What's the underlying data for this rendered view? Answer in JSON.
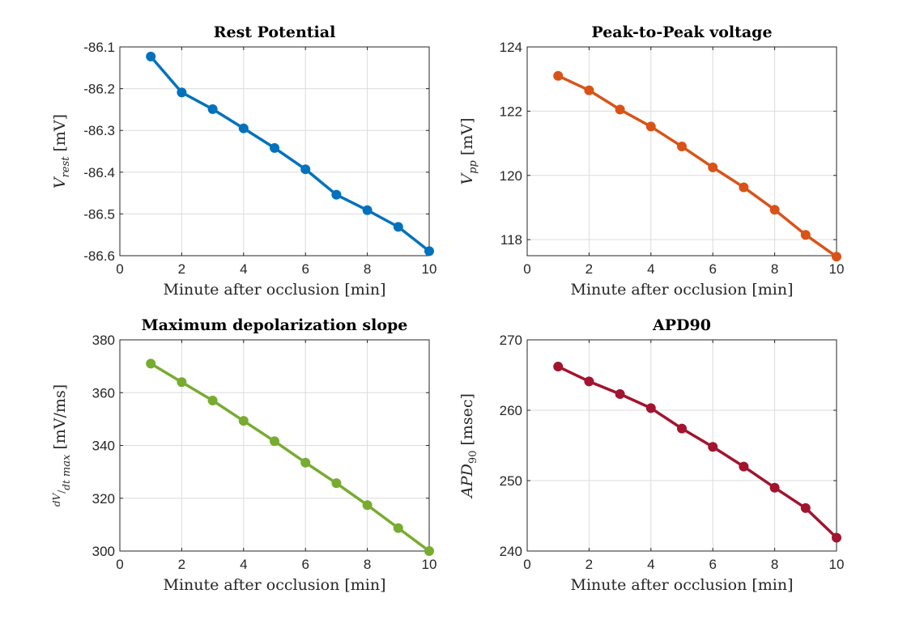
{
  "chart_data": [
    {
      "type": "line",
      "title": "Rest Potential",
      "xlabel": "Minute after occlusion [min]",
      "ylabel_main": "V",
      "ylabel_sub": "rest",
      "ylabel_unit": "[mV]",
      "xlim": [
        0,
        10
      ],
      "ylim": [
        -86.6,
        -86.1
      ],
      "xticks": [
        0,
        2,
        4,
        6,
        8,
        10
      ],
      "yticks": [
        -86.6,
        -86.5,
        -86.4,
        -86.3,
        -86.2,
        -86.1
      ],
      "ytick_labels": [
        "-86.6",
        "-86.5",
        "-86.4",
        "-86.3",
        "-86.2",
        "-86.1"
      ],
      "grid": true,
      "color": "#0072BD",
      "x": [
        1,
        2,
        3,
        4,
        5,
        6,
        7,
        8,
        9,
        10
      ],
      "y": [
        -86.123,
        -86.209,
        -86.249,
        -86.295,
        -86.342,
        -86.393,
        -86.454,
        -86.491,
        -86.531,
        -86.589
      ]
    },
    {
      "type": "line",
      "title": "Peak-to-Peak voltage",
      "xlabel": "Minute after occlusion [min]",
      "ylabel_main": "V",
      "ylabel_sub": "pp",
      "ylabel_unit": "[mV]",
      "xlim": [
        0,
        10
      ],
      "ylim": [
        117.5,
        124
      ],
      "xticks": [
        0,
        2,
        4,
        6,
        8,
        10
      ],
      "yticks": [
        118,
        120,
        122,
        124
      ],
      "ytick_labels": [
        "118",
        "120",
        "122",
        "124"
      ],
      "grid": true,
      "color": "#D95319",
      "x": [
        1,
        2,
        3,
        4,
        5,
        6,
        7,
        8,
        9,
        10
      ],
      "y": [
        123.1,
        122.65,
        122.05,
        121.52,
        120.9,
        120.25,
        119.63,
        118.93,
        118.15,
        117.47
      ]
    },
    {
      "type": "line",
      "title": "Maximum depolarization slope",
      "xlabel": "Minute after occlusion [min]",
      "ylabel_frac_num": "dV",
      "ylabel_frac_den": "dt",
      "ylabel_sub": "max",
      "ylabel_unit": "[mV/ms]",
      "xlim": [
        0,
        10
      ],
      "ylim": [
        300,
        380
      ],
      "xticks": [
        0,
        2,
        4,
        6,
        8,
        10
      ],
      "yticks": [
        300,
        320,
        340,
        360,
        380
      ],
      "ytick_labels": [
        "300",
        "320",
        "340",
        "360",
        "380"
      ],
      "grid": true,
      "color": "#77AC30",
      "x": [
        1,
        2,
        3,
        4,
        5,
        6,
        7,
        8,
        9,
        10
      ],
      "y": [
        371.0,
        364.0,
        357.0,
        349.3,
        341.6,
        333.5,
        325.7,
        317.4,
        308.7,
        300.0
      ]
    },
    {
      "type": "line",
      "title": "APD90",
      "xlabel": "Minute after occlusion [min]",
      "ylabel_main": "APD",
      "ylabel_sub": "90",
      "ylabel_unit": "[msec]",
      "xlim": [
        0,
        10
      ],
      "ylim": [
        240,
        270
      ],
      "xticks": [
        0,
        2,
        4,
        6,
        8,
        10
      ],
      "yticks": [
        240,
        250,
        260,
        270
      ],
      "ytick_labels": [
        "240",
        "250",
        "260",
        "270"
      ],
      "grid": true,
      "color": "#A2142F",
      "x": [
        1,
        2,
        3,
        4,
        5,
        6,
        7,
        8,
        9,
        10
      ],
      "y": [
        266.2,
        264.1,
        262.3,
        260.3,
        257.4,
        254.8,
        252.0,
        249.0,
        246.1,
        241.9
      ]
    }
  ]
}
